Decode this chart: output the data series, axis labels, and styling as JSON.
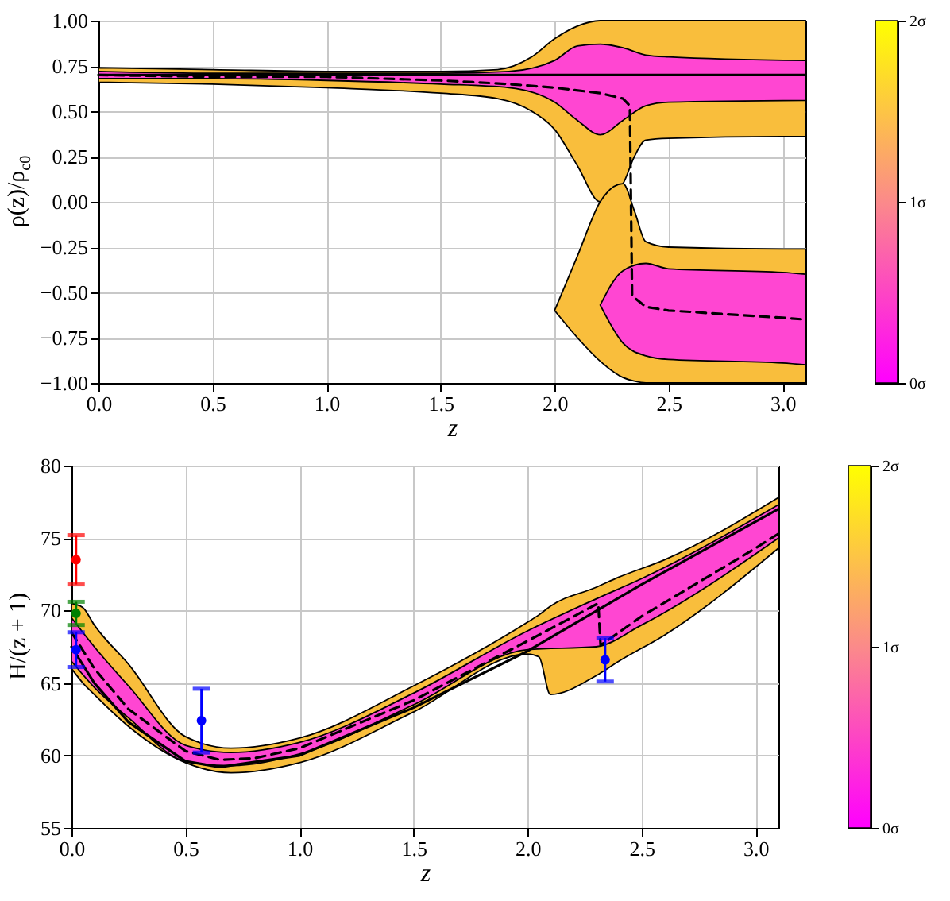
{
  "chart_data": [
    {
      "type": "line",
      "xlabel": "z",
      "ylabel": "ρ(z)/ρ$_{c0}$",
      "xlim": [
        0,
        3.1
      ],
      "ylim": [
        -1,
        1
      ],
      "xticks": [
        {
          "value": 0,
          "label": "0.0"
        },
        0.5,
        {
          "value": 1,
          "label": "1.0"
        },
        1.5,
        {
          "value": 2,
          "label": "2.0"
        },
        2.5,
        {
          "value": 3,
          "label": "3.0"
        }
      ],
      "yticks": [
        {
          "value": -1,
          "label": "−1.00"
        },
        {
          "value": -0.75,
          "label": "−0.75"
        },
        {
          "value": -0.5,
          "label": "−0.50"
        },
        {
          "value": -0.25,
          "label": "−0.25"
        },
        {
          "value": 0,
          "label": "0.00"
        },
        {
          "value": 0.25,
          "label": "0.25"
        },
        {
          "value": 0.5,
          "label": "0.50"
        },
        {
          "value": 0.75,
          "label": "0.75"
        },
        {
          "value": 1,
          "label": "1.00"
        }
      ],
      "grid": true,
      "clim": [
        0,
        2
      ],
      "cticks": [
        {
          "value": 0,
          "label": "0σ"
        },
        {
          "value": 1,
          "label": "1σ"
        },
        {
          "value": 2,
          "label": "2σ"
        }
      ],
      "colors": [
        "#ff00ff",
        "#fb8a8a",
        "#ffff00"
      ],
      "series": [
        {
          "color": "#f9be3c",
          "x": [
            0,
            0.5,
            1,
            1.5,
            1.75,
            1.9,
            2,
            2.1,
            2.2,
            2.3,
            2.35,
            2.4,
            2.5,
            3,
            3.1
          ],
          "values": [
            null,
            null,
            null,
            null,
            null,
            null,
            null,
            null,
            null,
            null,
            null,
            null,
            null,
            null,
            null
          ],
          "lower": [
            0.66,
            0.65,
            0.63,
            0.6,
            0.57,
            0.5,
            0.4,
            0.2,
            0,
            0.1,
            0.25,
            0.34,
            0.35,
            0.36,
            0.36
          ],
          "upper": [
            0.74,
            0.73,
            0.72,
            0.72,
            0.73,
            0.8,
            0.9,
            0.97,
            1,
            1,
            1,
            1,
            1,
            1,
            1
          ]
        },
        {
          "color": "#f9be3c",
          "x": [
            2,
            2.1,
            2.2,
            2.3,
            2.35,
            2.4,
            2.5,
            3,
            3.1
          ],
          "values": [
            null,
            null,
            null,
            null,
            null,
            null,
            null,
            null,
            null
          ],
          "lower": [
            -0.6,
            -0.75,
            -0.88,
            -0.97,
            -0.99,
            -1,
            -1,
            -1,
            -1
          ],
          "upper": [
            -0.6,
            -0.3,
            0,
            0.1,
            -0.05,
            -0.22,
            -0.25,
            -0.26,
            -0.26
          ]
        },
        {
          "color": "#ff46d2",
          "x": [
            0,
            0.5,
            1,
            1.5,
            1.8,
            2,
            2.1,
            2.2,
            2.3,
            2.4,
            2.5,
            3.1
          ],
          "values": [
            null,
            null,
            null,
            null,
            null,
            null,
            null,
            null,
            null,
            null,
            null,
            null
          ],
          "lower": [
            0.68,
            0.68,
            0.67,
            0.65,
            0.63,
            0.55,
            0.45,
            0.37,
            0.45,
            0.53,
            0.55,
            0.56
          ],
          "upper": [
            0.72,
            0.71,
            0.71,
            0.71,
            0.72,
            0.78,
            0.86,
            0.87,
            0.85,
            0.81,
            0.8,
            0.78
          ]
        },
        {
          "color": "#ff46d2",
          "x": [
            2.2,
            2.3,
            2.4,
            2.5,
            3,
            3.1
          ],
          "values": [
            null,
            null,
            null,
            null,
            null,
            null
          ],
          "lower": [
            -0.57,
            -0.78,
            -0.85,
            -0.87,
            -0.89,
            -0.9
          ],
          "upper": [
            -0.57,
            -0.38,
            -0.34,
            -0.37,
            -0.39,
            -0.4
          ]
        },
        {
          "color": "#000000",
          "line_style": "solid",
          "x": [
            0,
            3.1
          ],
          "values": [
            0.7,
            0.7
          ]
        },
        {
          "color": "#000000",
          "line_style": "dashed",
          "x": [
            0,
            0.5,
            1,
            1.5,
            1.8,
            2,
            2.2,
            2.3,
            2.33,
            2.34,
            2.4,
            2.5,
            3,
            3.1
          ],
          "values": [
            0.7,
            0.69,
            0.69,
            0.67,
            0.65,
            0.63,
            0.6,
            0.57,
            0.53,
            -0.52,
            -0.58,
            -0.6,
            -0.64,
            -0.65
          ]
        }
      ]
    },
    {
      "type": "line",
      "xlabel": "z",
      "ylabel": "H/(z + 1)",
      "xlim": [
        0,
        3.1
      ],
      "ylim": [
        55,
        80
      ],
      "xticks": [
        {
          "value": 0,
          "label": "0.0"
        },
        0.5,
        {
          "value": 1,
          "label": "1.0"
        },
        1.5,
        {
          "value": 2,
          "label": "2.0"
        },
        2.5,
        {
          "value": 3,
          "label": "3.0"
        }
      ],
      "yticks": [
        55,
        60,
        65,
        70,
        75,
        80
      ],
      "grid": true,
      "clim": [
        0,
        2
      ],
      "cticks": [
        {
          "value": 0,
          "label": "0σ"
        },
        {
          "value": 1,
          "label": "1σ"
        },
        {
          "value": 2,
          "label": "2σ"
        }
      ],
      "colors": [
        "#ff00ff",
        "#fb8a8a",
        "#ffff00"
      ],
      "series": [
        {
          "color": "#f9be3c",
          "x": [
            0,
            0.05,
            0.1,
            0.25,
            0.5,
            0.7,
            1,
            1.5,
            2,
            2.05,
            2.1,
            2.3,
            2.4,
            2.6,
            3.1
          ],
          "values": [
            null,
            null,
            null,
            null,
            null,
            null,
            null,
            null,
            null,
            null,
            null,
            null,
            null,
            null,
            null
          ],
          "lower": [
            66,
            65,
            64.2,
            62,
            59.5,
            58.8,
            59.5,
            63,
            67,
            66.8,
            64.2,
            65.5,
            66.5,
            68.3,
            74.3
          ],
          "upper": [
            70.5,
            70.2,
            69,
            66.3,
            61.3,
            60.5,
            61.2,
            64.8,
            69.2,
            69.7,
            70.3,
            71.6,
            72.3,
            73.5,
            77.8
          ]
        },
        {
          "color": "#ff46d2",
          "x": [
            0,
            0.1,
            0.25,
            0.5,
            0.7,
            1,
            1.5,
            2,
            2.3,
            2.5,
            3.1
          ],
          "values": [
            null,
            null,
            null,
            null,
            null,
            null,
            null,
            null,
            null,
            null,
            null
          ],
          "lower": [
            66.5,
            64.7,
            62.6,
            59.6,
            59.3,
            60.1,
            63.5,
            67.3,
            67.5,
            69,
            75
          ],
          "upper": [
            69.5,
            67.5,
            64.8,
            60.7,
            60.2,
            60.9,
            64.3,
            68.6,
            70.8,
            72.2,
            77.3
          ]
        },
        {
          "color": "#000000",
          "line_style": "solid",
          "x": [
            0,
            0.1,
            0.25,
            0.5,
            0.65,
            1,
            1.5,
            2,
            2.5,
            3.1
          ],
          "values": [
            67.5,
            65,
            62.3,
            59.6,
            59.2,
            60,
            63.3,
            67.2,
            71.8,
            77
          ]
        },
        {
          "color": "#000000",
          "line_style": "dashed",
          "x": [
            0,
            0.1,
            0.25,
            0.5,
            0.65,
            0.8,
            1,
            1.5,
            2,
            2.31,
            2.32,
            2.5,
            3,
            3.1
          ],
          "values": [
            68.5,
            66,
            63.2,
            60.3,
            59.7,
            59.8,
            60.5,
            63.8,
            67.9,
            70.5,
            67.6,
            69.6,
            74.3,
            75.3
          ]
        },
        {
          "type": "scatter",
          "marker": "circle",
          "color": "#ff0000",
          "x": [
            0.02
          ],
          "values": [
            73.5
          ],
          "errors": [
            [
              71.8,
              75.2
            ]
          ]
        },
        {
          "type": "scatter",
          "marker": "circle",
          "color": "#008000",
          "x": [
            0.02
          ],
          "values": [
            69.8
          ],
          "errors": [
            [
              69,
              70.6
            ]
          ]
        },
        {
          "type": "scatter",
          "marker": "circle",
          "color": "#0000ff",
          "x": [
            0.02,
            0.57,
            2.34
          ],
          "values": [
            67.3,
            62.4,
            66.6
          ],
          "errors": [
            [
              66.1,
              68.5
            ],
            [
              60.2,
              64.6
            ],
            [
              65.1,
              68.1
            ]
          ]
        }
      ]
    }
  ]
}
